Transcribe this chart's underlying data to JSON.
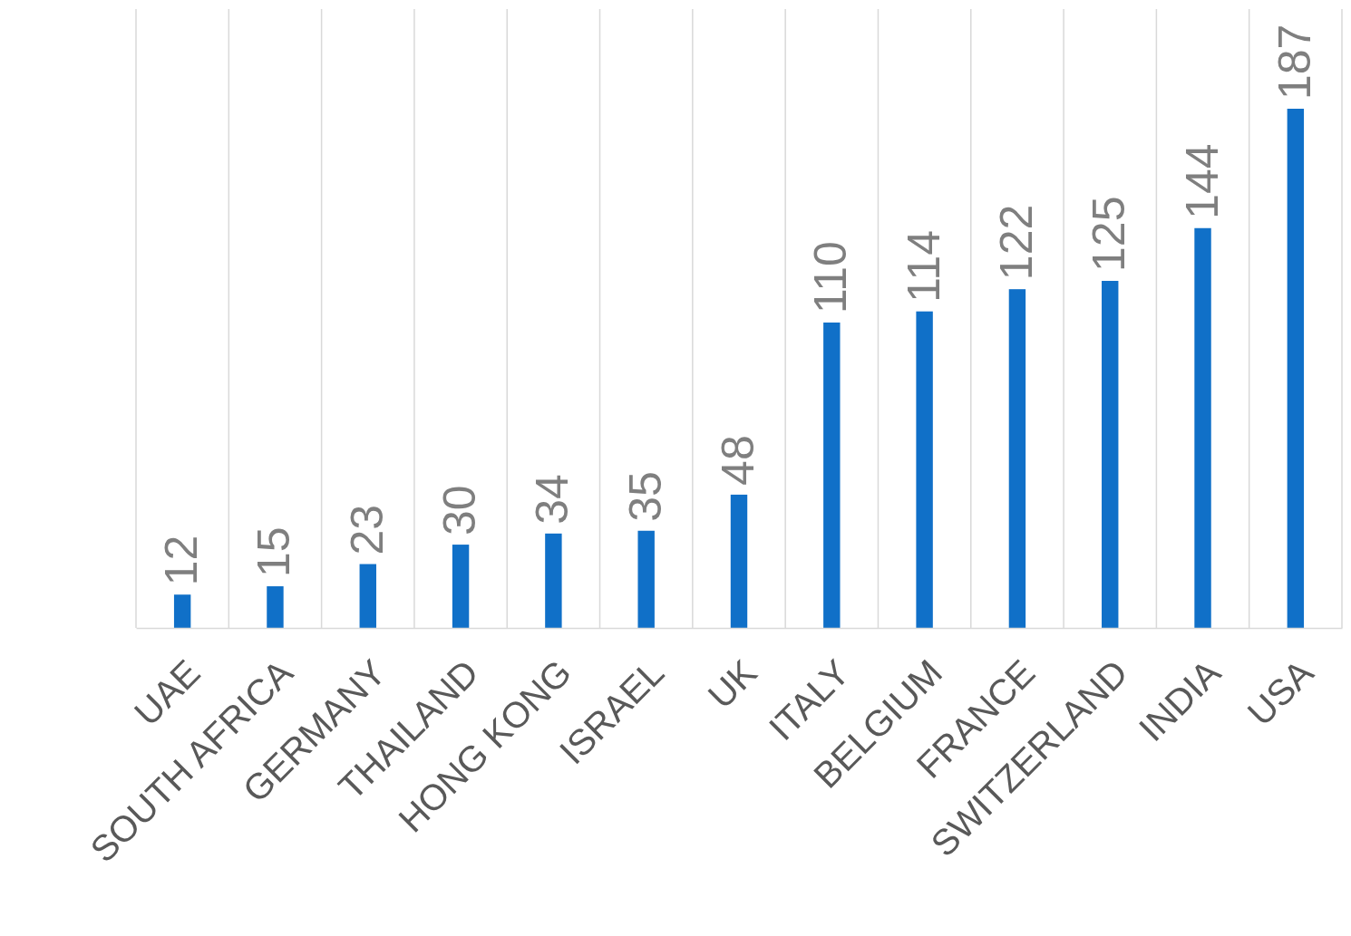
{
  "chart_data": {
    "type": "bar",
    "categories": [
      "UAE",
      "SOUTH AFRICA",
      "GERMANY",
      "THAILAND",
      "HONG KONG",
      "ISRAEL",
      "UK",
      "ITALY",
      "BELGIUM",
      "FRANCE",
      "SWITZERLAND",
      "INDIA",
      "USA"
    ],
    "values": [
      12,
      15,
      23,
      30,
      34,
      35,
      48,
      110,
      114,
      122,
      125,
      144,
      187
    ],
    "color": "#1070c8",
    "data_labels": true,
    "grid": "x"
  }
}
